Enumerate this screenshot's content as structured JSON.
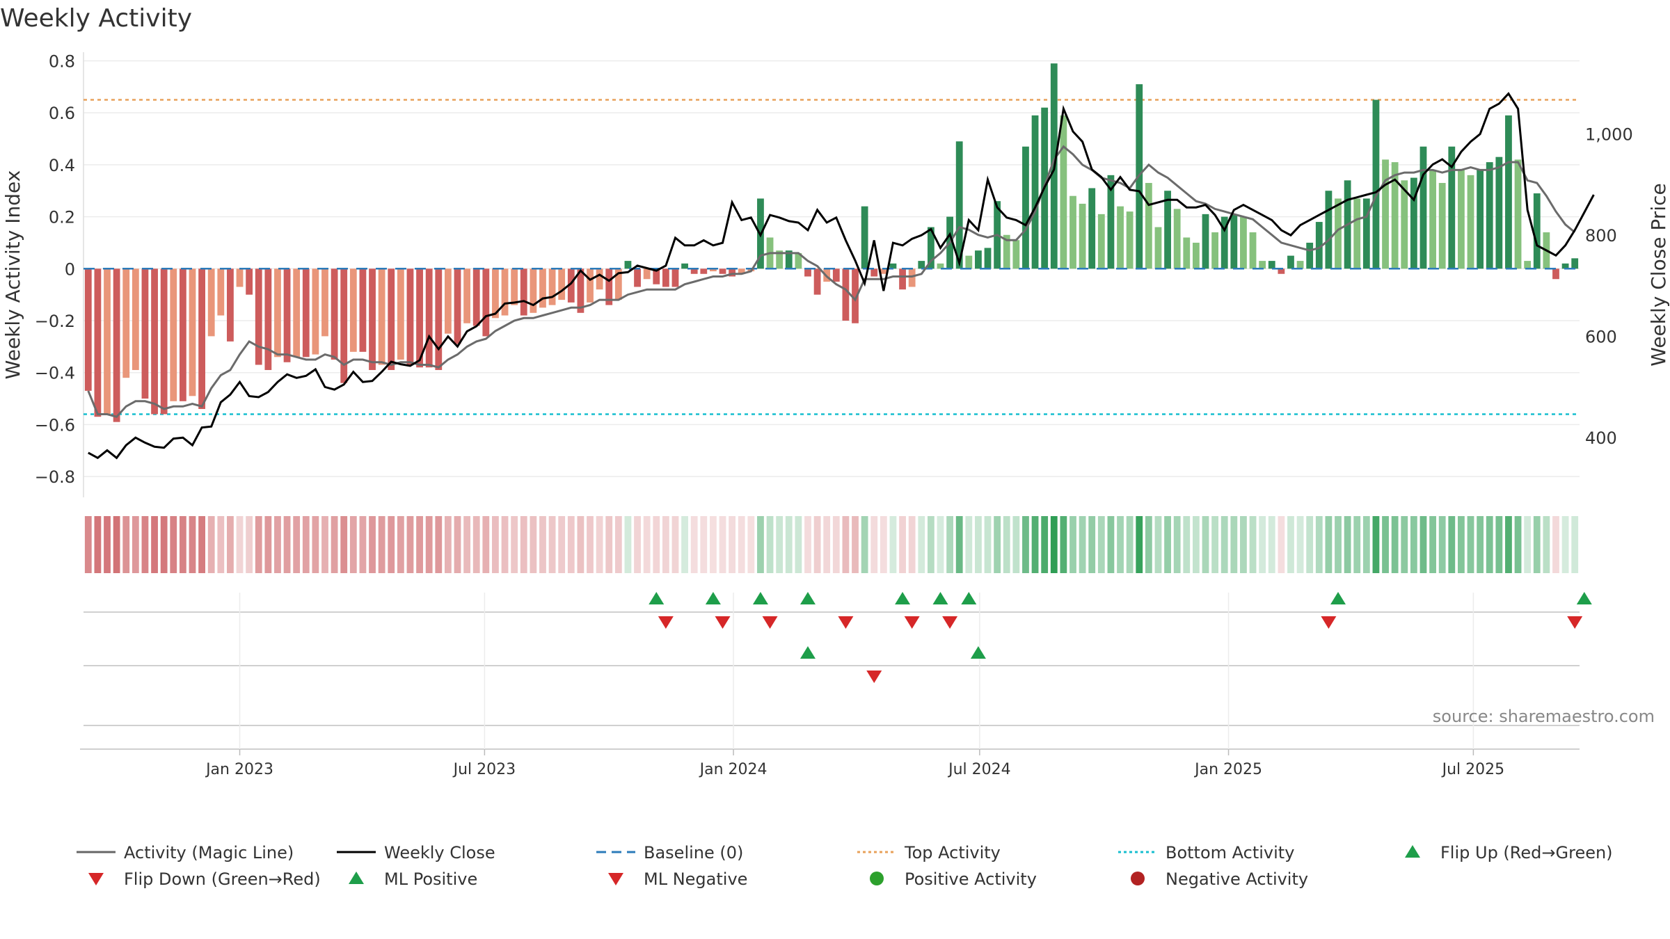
{
  "page": {
    "title": "Weekly Activity",
    "watermark": "source: sharemaestro.com"
  },
  "chart_data": {
    "type": "bar",
    "title": "Weekly Activity",
    "ylabel": "Weekly Activity Index",
    "y2label": "Weekly Close Price",
    "ylim": [
      -0.88,
      0.82
    ],
    "y2lim": [
      282,
      1155
    ],
    "yticks": [
      "0.8",
      "0.6",
      "0.4",
      "0.2",
      "0",
      "−0.2",
      "−0.4",
      "−0.6",
      "−0.8"
    ],
    "y2ticks": [
      "1,000",
      "800",
      "600",
      "400"
    ],
    "xticks": [
      "Jan 2023",
      "Jul 2023",
      "Jan 2024",
      "Jul 2024",
      "Jan 2025",
      "Jul 2025"
    ],
    "start_week": "2022-09-11",
    "top_activity": 0.65,
    "bottom_activity": -0.56,
    "activity": [
      -0.47,
      -0.57,
      -0.56,
      -0.59,
      -0.42,
      -0.39,
      -0.5,
      -0.56,
      -0.56,
      -0.51,
      -0.51,
      -0.49,
      -0.54,
      -0.26,
      -0.18,
      -0.28,
      -0.07,
      -0.1,
      -0.37,
      -0.39,
      -0.34,
      -0.36,
      -0.34,
      -0.34,
      -0.33,
      -0.26,
      -0.35,
      -0.44,
      -0.32,
      -0.32,
      -0.39,
      -0.37,
      -0.39,
      -0.35,
      -0.37,
      -0.38,
      -0.38,
      -0.39,
      -0.25,
      -0.29,
      -0.21,
      -0.22,
      -0.26,
      -0.19,
      -0.18,
      -0.14,
      -0.18,
      -0.17,
      -0.15,
      -0.14,
      -0.12,
      -0.13,
      -0.17,
      -0.13,
      -0.08,
      -0.14,
      -0.12,
      0.03,
      -0.07,
      -0.04,
      -0.06,
      -0.07,
      -0.07,
      0.02,
      -0.02,
      -0.02,
      -0.01,
      -0.02,
      -0.03,
      -0.02,
      -0.01,
      0.27,
      0.12,
      0.07,
      0.07,
      0.06,
      -0.03,
      -0.1,
      -0.05,
      -0.05,
      -0.2,
      -0.21,
      0.24,
      -0.03,
      -0.02,
      0.02,
      -0.08,
      -0.07,
      0.03,
      0.16,
      0.02,
      0.2,
      0.49,
      0.05,
      0.07,
      0.08,
      0.26,
      0.13,
      0.11,
      0.47,
      0.59,
      0.62,
      0.79,
      0.59,
      0.28,
      0.25,
      0.31,
      0.21,
      0.36,
      0.24,
      0.22,
      0.71,
      0.33,
      0.16,
      0.3,
      0.23,
      0.12,
      0.1,
      0.21,
      0.14,
      0.2,
      0.21,
      0.2,
      0.14,
      0.03,
      0.03,
      -0.02,
      0.05,
      0.03,
      0.1,
      0.18,
      0.3,
      0.27,
      0.34,
      0.27,
      0.27,
      0.65,
      0.42,
      0.41,
      0.34,
      0.35,
      0.47,
      0.38,
      0.33,
      0.47,
      0.38,
      0.36,
      0.38,
      0.41,
      0.43,
      0.59,
      0.42,
      0.03,
      0.29,
      0.14,
      -0.04,
      0.02,
      0.04
    ],
    "magic_line": [
      -0.47,
      -0.56,
      -0.56,
      -0.57,
      -0.53,
      -0.51,
      -0.51,
      -0.52,
      -0.54,
      -0.53,
      -0.53,
      -0.52,
      -0.53,
      -0.46,
      -0.41,
      -0.39,
      -0.33,
      -0.28,
      -0.3,
      -0.31,
      -0.33,
      -0.33,
      -0.34,
      -0.35,
      -0.35,
      -0.33,
      -0.34,
      -0.37,
      -0.35,
      -0.35,
      -0.36,
      -0.36,
      -0.37,
      -0.36,
      -0.36,
      -0.37,
      -0.37,
      -0.38,
      -0.35,
      -0.33,
      -0.3,
      -0.28,
      -0.27,
      -0.24,
      -0.22,
      -0.2,
      -0.19,
      -0.19,
      -0.18,
      -0.17,
      -0.16,
      -0.15,
      -0.15,
      -0.14,
      -0.12,
      -0.12,
      -0.12,
      -0.1,
      -0.09,
      -0.08,
      -0.08,
      -0.08,
      -0.08,
      -0.06,
      -0.05,
      -0.04,
      -0.03,
      -0.03,
      -0.02,
      -0.02,
      -0.01,
      0.05,
      0.06,
      0.06,
      0.06,
      0.06,
      0.03,
      0.01,
      -0.03,
      -0.06,
      -0.08,
      -0.12,
      -0.04,
      -0.04,
      -0.04,
      -0.03,
      -0.03,
      -0.03,
      -0.02,
      0.03,
      0.06,
      0.1,
      0.16,
      0.15,
      0.13,
      0.12,
      0.13,
      0.11,
      0.11,
      0.15,
      0.22,
      0.32,
      0.42,
      0.47,
      0.44,
      0.4,
      0.38,
      0.35,
      0.34,
      0.33,
      0.31,
      0.36,
      0.4,
      0.37,
      0.35,
      0.32,
      0.29,
      0.26,
      0.25,
      0.23,
      0.22,
      0.21,
      0.2,
      0.19,
      0.16,
      0.13,
      0.1,
      0.09,
      0.08,
      0.07,
      0.08,
      0.11,
      0.15,
      0.17,
      0.19,
      0.2,
      0.28,
      0.34,
      0.36,
      0.37,
      0.37,
      0.38,
      0.38,
      0.37,
      0.38,
      0.38,
      0.39,
      0.38,
      0.38,
      0.39,
      0.41,
      0.41,
      0.34,
      0.33,
      0.28,
      0.22,
      0.17,
      0.14
    ],
    "weekly_close": [
      370,
      360,
      375,
      360,
      385,
      400,
      390,
      382,
      380,
      398,
      400,
      385,
      420,
      422,
      470,
      485,
      510,
      482,
      480,
      490,
      510,
      525,
      518,
      522,
      535,
      500,
      495,
      505,
      530,
      510,
      512,
      530,
      550,
      545,
      542,
      553,
      600,
      575,
      600,
      580,
      610,
      620,
      640,
      645,
      665,
      667,
      670,
      662,
      675,
      678,
      690,
      705,
      730,
      712,
      722,
      710,
      725,
      727,
      740,
      735,
      730,
      740,
      795,
      780,
      780,
      790,
      780,
      785,
      865,
      830,
      835,
      800,
      840,
      835,
      828,
      825,
      810,
      850,
      825,
      835,
      790,
      750,
      705,
      790,
      690,
      785,
      780,
      793,
      800,
      812,
      775,
      802,
      745,
      830,
      810,
      910,
      855,
      835,
      830,
      820,
      855,
      895,
      930,
      1050,
      1005,
      985,
      930,
      915,
      890,
      915,
      890,
      887,
      860,
      865,
      870,
      870,
      855,
      855,
      860,
      840,
      810,
      850,
      860,
      850,
      840,
      830,
      810,
      800,
      820,
      830,
      840,
      850,
      860,
      870,
      875,
      880,
      885,
      900,
      910,
      890,
      870,
      920,
      940,
      950,
      935,
      965,
      985,
      1000,
      1050,
      1060,
      1080,
      1050,
      850,
      780,
      770,
      760,
      780,
      810,
      845,
      880
    ]
  },
  "signals": {
    "flip_up": [
      "2023-11-05",
      "2023-12-17",
      "2024-01-21",
      "2024-02-25",
      "2024-05-05",
      "2024-06-02",
      "2024-06-23",
      "2025-03-23",
      "2025-09-21"
    ],
    "flip_down": [
      "2023-11-12",
      "2023-12-24",
      "2024-01-28",
      "2024-03-24",
      "2024-05-12",
      "2024-06-09",
      "2025-03-16",
      "2025-09-14"
    ],
    "ml_positive": [
      "2024-02-25",
      "2024-06-30"
    ],
    "ml_negative": [
      "2024-04-14"
    ]
  },
  "legend": {
    "items": [
      {
        "label": "Activity (Magic Line)",
        "kind": "line",
        "color": "#666666"
      },
      {
        "label": "Weekly Close",
        "kind": "line",
        "color": "#000000"
      },
      {
        "label": "Baseline (0)",
        "kind": "dash",
        "color": "#2b7bba"
      },
      {
        "label": "Top Activity",
        "kind": "dot",
        "color": "#e8a15a"
      },
      {
        "label": "Bottom Activity",
        "kind": "dot",
        "color": "#17becf"
      },
      {
        "label": "Flip Up (Red→Green)",
        "kind": "tri-up",
        "color": "#1e9e4a"
      },
      {
        "label": "Flip Down (Green→Red)",
        "kind": "tri-down",
        "color": "#d62728"
      },
      {
        "label": "ML Positive",
        "kind": "tri-up",
        "color": "#1e9e4a"
      },
      {
        "label": "ML Negative",
        "kind": "tri-down",
        "color": "#d62728"
      },
      {
        "label": "Positive Activity",
        "kind": "circle",
        "color": "#2ca02c"
      },
      {
        "label": "Negative Activity",
        "kind": "circle",
        "color": "#b22222"
      }
    ]
  },
  "colors": {
    "pos_strong": "#2e8b57",
    "pos_weak": "#86c17d",
    "neg_strong": "#cd5c5c",
    "neg_weak": "#e9967a",
    "magic_line": "#6b6b6b",
    "close_line": "#000000",
    "baseline": "#2b7bba",
    "top": "#e8a15a",
    "bottom": "#17becf",
    "up": "#1e9e4a",
    "down": "#d62728"
  }
}
